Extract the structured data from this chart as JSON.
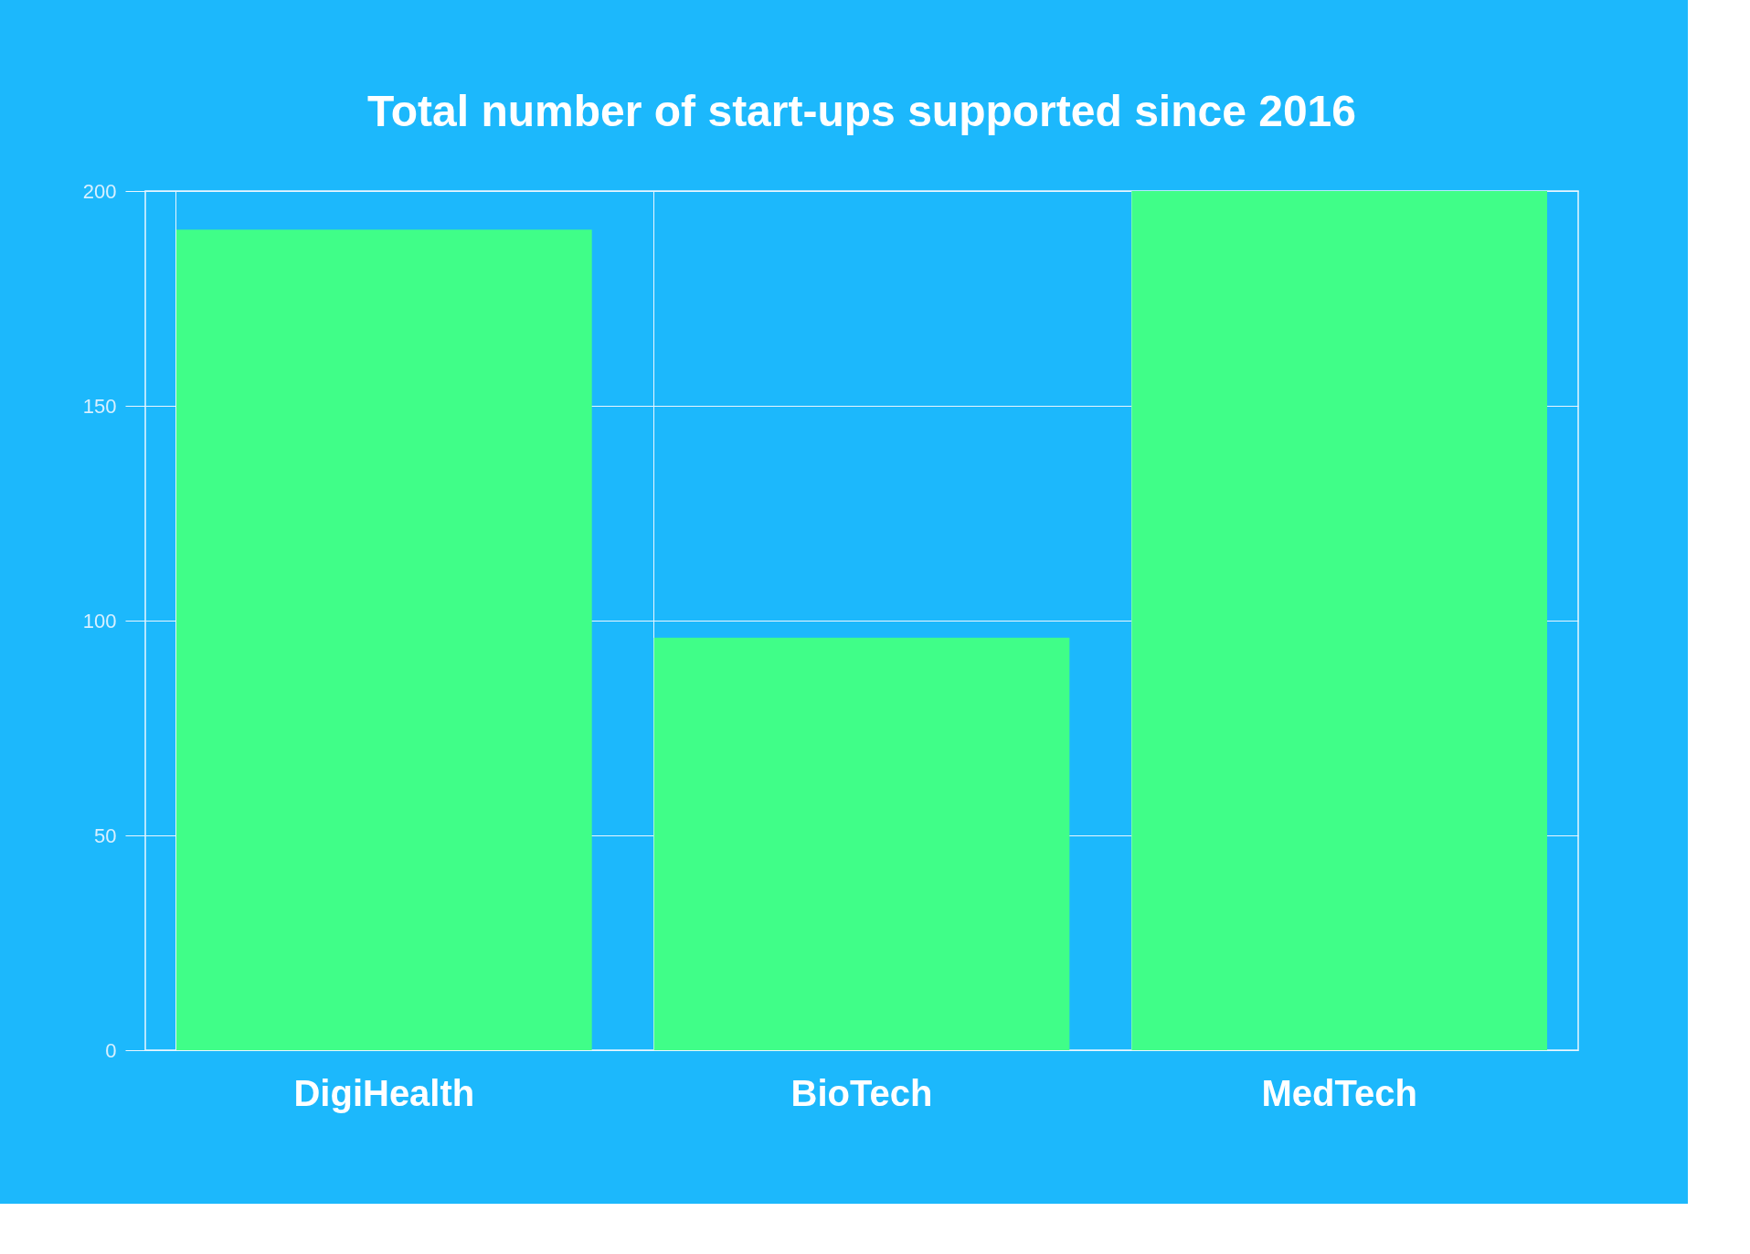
{
  "chart_data": {
    "type": "bar",
    "title": "Total number of start-ups supported since 2016",
    "categories": [
      "DigiHealth",
      "BioTech",
      "MedTech"
    ],
    "values": [
      191,
      96,
      200
    ],
    "color": "#40fe88",
    "ylim": [
      0,
      200
    ],
    "yticks": [
      0,
      50,
      100,
      150,
      200
    ],
    "grid": true
  }
}
